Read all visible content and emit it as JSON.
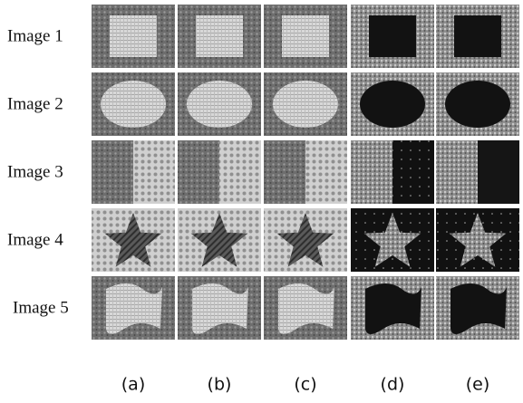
{
  "row_labels": [
    "Image 1",
    "Image 2",
    "Image 3",
    "Image 4",
    "Image 5"
  ],
  "column_labels": [
    "(a)",
    "(b)",
    "(c)",
    "(d)",
    "(e)"
  ]
}
